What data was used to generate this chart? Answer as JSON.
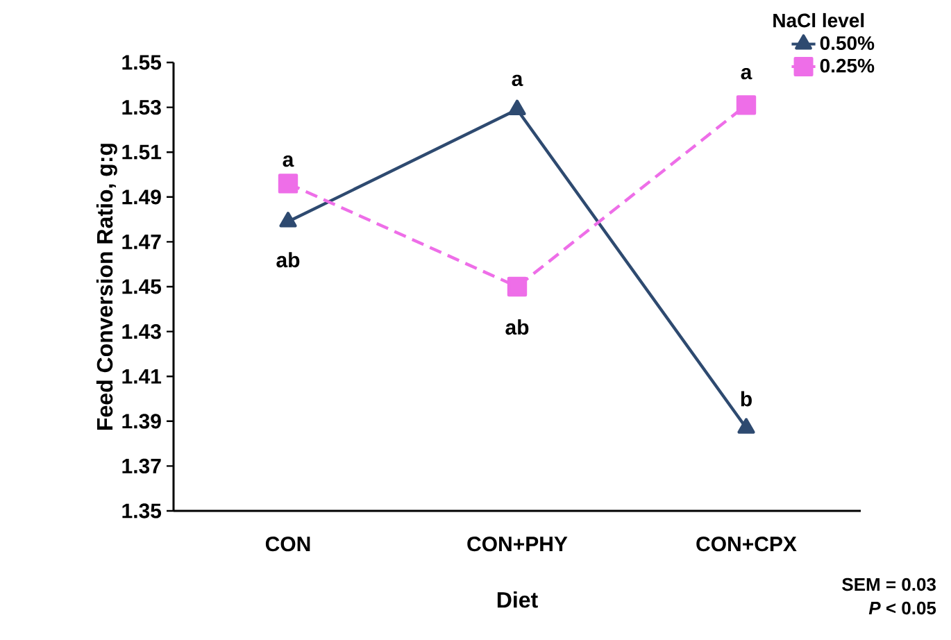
{
  "chart_data": {
    "type": "line",
    "xlabel": "Diet",
    "ylabel": "Feed Conversion Ratio, g:g",
    "legend_title": "NaCl level",
    "categories": [
      "CON",
      "CON+PHY",
      "CON+CPX"
    ],
    "series": [
      {
        "name": "0.50%",
        "color": "#2e4a70",
        "values": [
          1.479,
          1.529,
          1.387
        ],
        "marker": "triangle",
        "line_style": "solid"
      },
      {
        "name": "0.25%",
        "color": "#ee6ee8",
        "values": [
          1.496,
          1.45,
          1.531
        ],
        "marker": "square",
        "line_style": "dashed"
      }
    ],
    "ylim": [
      1.35,
      1.55
    ],
    "yticks": [
      1.35,
      1.37,
      1.39,
      1.41,
      1.43,
      1.45,
      1.47,
      1.49,
      1.51,
      1.53,
      1.55
    ],
    "grid": false,
    "legend": "top right",
    "annotations": [
      "a",
      "ab",
      "a",
      "ab",
      "a",
      "b",
      "SEM = 0.03",
      "*P* < 0.05"
    ]
  }
}
